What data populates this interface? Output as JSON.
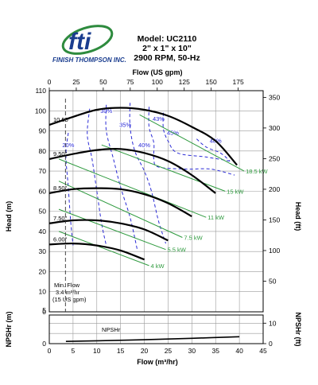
{
  "brand": {
    "logo_text": "fti",
    "company": "FINISH THOMPSON INC."
  },
  "header": {
    "model": "Model: UC2110",
    "size": "2\" x 1\" x 10\"",
    "speed": "2900 RPM, 50-Hz"
  },
  "chart_data": {
    "type": "line",
    "top_axis": {
      "label": "Flow (US gpm)",
      "range": [
        0,
        185
      ],
      "ticks": [
        "0",
        "25",
        "50",
        "75",
        "100",
        "125",
        "150",
        "175"
      ]
    },
    "bottom_axis": {
      "label": "Flow (m³/hr)",
      "range": [
        0,
        45
      ],
      "ticks": [
        "0",
        "5",
        "10",
        "15",
        "20",
        "25",
        "30",
        "35",
        "40",
        "45"
      ]
    },
    "left_axis": {
      "label": "Head (m)",
      "range": [
        0,
        110
      ],
      "ticks": [
        "0",
        "10",
        "20",
        "30",
        "40",
        "50",
        "60",
        "70",
        "80",
        "90",
        "100",
        "110"
      ]
    },
    "right_axis": {
      "label": "Head (ft)",
      "range": [
        0,
        360.9
      ],
      "ticks": [
        "50",
        "100",
        "150",
        "200",
        "250",
        "300",
        "350"
      ]
    },
    "npsh_axis": {
      "left_label": "NPSHr (m)",
      "right_label": "NPSHr (ft)",
      "left_ticks": [
        "0",
        "5"
      ],
      "right_ticks": [
        "0",
        "10"
      ]
    },
    "min_flow": {
      "text": [
        "Min. Flow",
        "3.4 m³/hr",
        "(15 US gpm)"
      ],
      "value": 3.4
    },
    "impellers": [
      {
        "label": "10.50\"",
        "points": [
          [
            0,
            93
          ],
          [
            5,
            97
          ],
          [
            10,
            100.5
          ],
          [
            15,
            101.5
          ],
          [
            20,
            100.5
          ],
          [
            25,
            97.5
          ],
          [
            30,
            92
          ],
          [
            35,
            85
          ],
          [
            39.5,
            73
          ]
        ]
      },
      {
        "label": "9.50\"",
        "points": [
          [
            0,
            76
          ],
          [
            5,
            78.5
          ],
          [
            10,
            80.5
          ],
          [
            15,
            81
          ],
          [
            20,
            79
          ],
          [
            25,
            75
          ],
          [
            30,
            68
          ],
          [
            35,
            59
          ]
        ]
      },
      {
        "label": "8.50\"",
        "points": [
          [
            0,
            59
          ],
          [
            5,
            61
          ],
          [
            10,
            61.5
          ],
          [
            15,
            61
          ],
          [
            20,
            58.5
          ],
          [
            25,
            54
          ],
          [
            30,
            47.5
          ]
        ]
      },
      {
        "label": "7.50\"",
        "points": [
          [
            0,
            44
          ],
          [
            5,
            45.5
          ],
          [
            10,
            45.5
          ],
          [
            15,
            44
          ],
          [
            20,
            41
          ],
          [
            25,
            35.5
          ]
        ]
      },
      {
        "label": "6.00\"",
        "points": [
          [
            0,
            33.5
          ],
          [
            5,
            34
          ],
          [
            10,
            33
          ],
          [
            15,
            30.5
          ],
          [
            20,
            26
          ]
        ]
      }
    ],
    "power_lines": [
      {
        "label": "4 kW",
        "points": [
          [
            2,
            40
          ],
          [
            21,
            23
          ]
        ]
      },
      {
        "label": "5.5 kW",
        "points": [
          [
            2,
            51
          ],
          [
            24.5,
            31
          ]
        ]
      },
      {
        "label": "7.5 kW",
        "points": [
          [
            2,
            65
          ],
          [
            28,
            37
          ]
        ]
      },
      {
        "label": "11 kW",
        "points": [
          [
            2,
            76
          ],
          [
            33,
            47
          ]
        ]
      },
      {
        "label": "15 kW",
        "points": [
          [
            11,
            83
          ],
          [
            37,
            60
          ]
        ]
      },
      {
        "label": "18.5 kW",
        "points": [
          [
            19,
            98
          ],
          [
            41,
            70
          ]
        ]
      }
    ],
    "efficiency": [
      {
        "label": "20%",
        "points": [
          [
            4,
            89
          ],
          [
            3.5,
            78
          ],
          [
            4,
            62
          ],
          [
            4.5,
            45
          ],
          [
            5,
            33
          ]
        ]
      },
      {
        "label": "30%",
        "points": [
          [
            8.5,
            101
          ],
          [
            8,
            88
          ],
          [
            9,
            76
          ],
          [
            10,
            60
          ],
          [
            11,
            44
          ],
          [
            12,
            33
          ]
        ]
      },
      {
        "label": "35%",
        "points": [
          [
            12,
            103
          ],
          [
            12,
            90
          ],
          [
            13.5,
            76
          ],
          [
            15,
            62
          ],
          [
            17,
            47
          ],
          [
            18.5,
            31
          ]
        ]
      },
      {
        "label": "40%",
        "points": [
          [
            17,
            104
          ],
          [
            17,
            92
          ],
          [
            18,
            80
          ],
          [
            20,
            70
          ],
          [
            21.5,
            60
          ],
          [
            23,
            45
          ],
          [
            24.5,
            34
          ]
        ]
      },
      {
        "label": "43%",
        "points": [
          [
            21,
            102
          ],
          [
            21,
            92
          ],
          [
            22,
            84
          ],
          [
            22,
            76
          ],
          [
            23,
            72
          ],
          [
            29,
            71
          ],
          [
            34,
            71
          ],
          [
            39,
            68
          ]
        ]
      },
      {
        "label": "45%",
        "points": [
          [
            24,
            99
          ],
          [
            24,
            91
          ],
          [
            25,
            85
          ],
          [
            27,
            79
          ],
          [
            33,
            77
          ],
          [
            38,
            75
          ]
        ]
      },
      {
        "label": "48%",
        "points": [
          [
            31,
            86
          ],
          [
            33,
            82
          ],
          [
            36,
            79
          ],
          [
            38,
            75
          ]
        ]
      }
    ],
    "npshr": {
      "label": "NPSHr",
      "points": [
        [
          3.5,
          1.1
        ],
        [
          10,
          1.4
        ],
        [
          20,
          1.9
        ],
        [
          30,
          2.6
        ],
        [
          40,
          3.4
        ]
      ]
    },
    "grid": true
  }
}
